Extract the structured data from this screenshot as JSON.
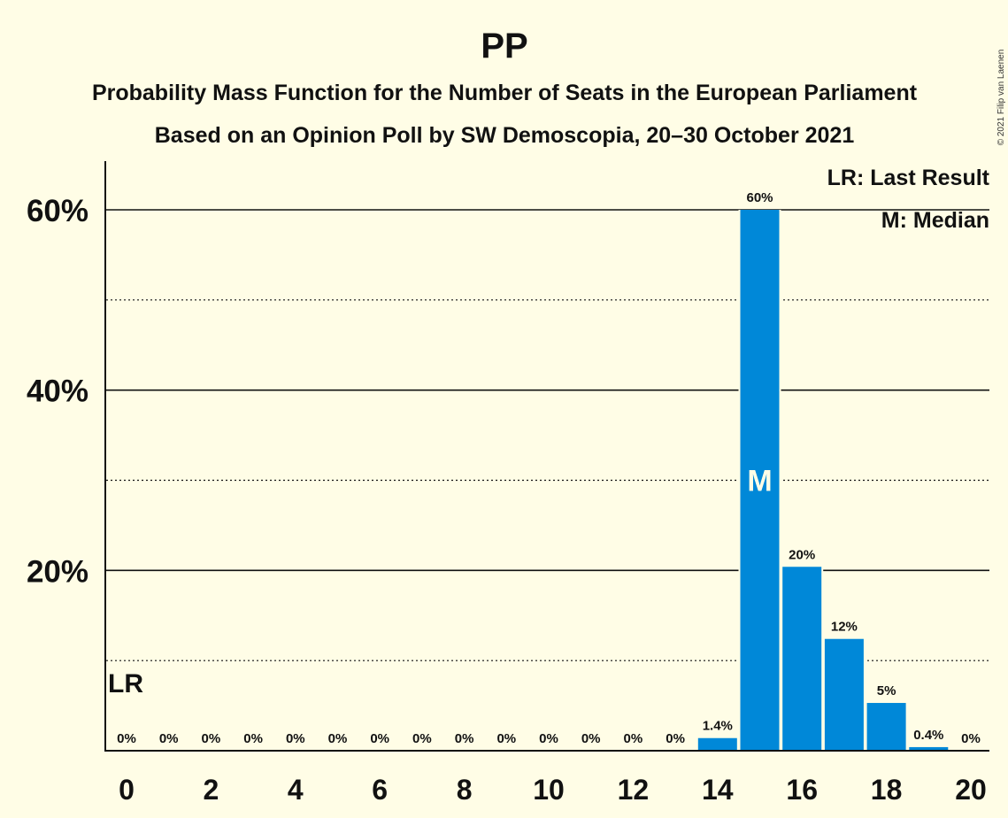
{
  "title": "PP",
  "subtitle1": "Probability Mass Function for the Number of Seats in the European Parliament",
  "subtitle2": "Based on an Opinion Poll by SW Demoscopia, 20–30 October 2021",
  "copyright": "© 2021 Filip van Laenen",
  "legend": {
    "last_result": "LR: Last Result",
    "median": "M: Median"
  },
  "markers": {
    "last_result_label": "LR",
    "last_result_seat": 0,
    "median_label": "M",
    "median_seat": 15
  },
  "colors": {
    "background": "#FFFDE6",
    "bar": "#0088D8",
    "text": "#111111"
  },
  "chart_data": {
    "type": "bar",
    "title": "PP",
    "x": [
      0,
      1,
      2,
      3,
      4,
      5,
      6,
      7,
      8,
      9,
      10,
      11,
      12,
      13,
      14,
      15,
      16,
      17,
      18,
      19,
      20
    ],
    "values": [
      0,
      0,
      0,
      0,
      0,
      0,
      0,
      0,
      0,
      0,
      0,
      0,
      0,
      0,
      1.4,
      60,
      20.4,
      12.4,
      5.3,
      0.4,
      0
    ],
    "data_labels": [
      "0%",
      "0%",
      "0%",
      "0%",
      "0%",
      "0%",
      "0%",
      "0%",
      "0%",
      "0%",
      "0%",
      "0%",
      "0%",
      "0%",
      "1.4%",
      "60%",
      "20%",
      "12%",
      "5%",
      "0.4%",
      "0%"
    ],
    "x_tick_labels": [
      "0",
      "2",
      "4",
      "6",
      "8",
      "10",
      "12",
      "14",
      "16",
      "18",
      "20"
    ],
    "y_tick_labels": [
      "20%",
      "40%",
      "60%"
    ],
    "ylim": [
      0,
      65
    ],
    "grid": {
      "major": [
        20,
        40,
        60
      ],
      "minor": [
        10,
        30,
        50
      ]
    },
    "legend_position": "top-right"
  }
}
